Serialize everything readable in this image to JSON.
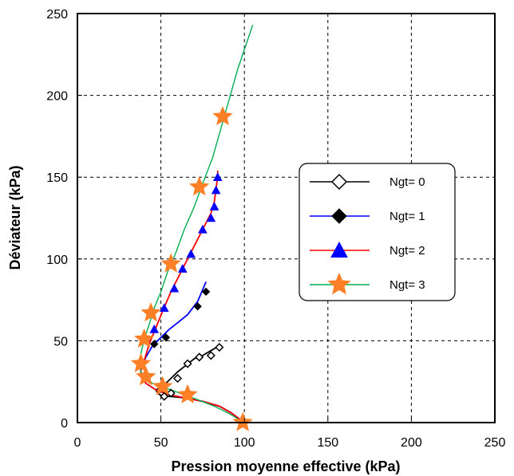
{
  "chart_data": {
    "type": "line",
    "title": "",
    "xlabel": "Pression moyenne effective (kPa)",
    "ylabel": "Déviateur (kPa)",
    "xlim": [
      0,
      250
    ],
    "ylim": [
      0,
      250
    ],
    "x_ticks": [
      "0",
      "50",
      "100",
      "150",
      "200",
      "250"
    ],
    "y_ticks": [
      "0",
      "50",
      "100",
      "150",
      "200",
      "250"
    ],
    "grid": true,
    "grid_style": "dashed",
    "legend_position": "center-right",
    "series": [
      {
        "name": "Ngt= 0",
        "color": "#000000",
        "marker": "open-diamond",
        "points": [
          [
            99,
            1
          ],
          [
            96,
            3
          ],
          [
            92,
            6
          ],
          [
            85,
            10
          ],
          [
            75,
            13
          ],
          [
            65,
            15
          ],
          [
            56,
            16
          ],
          [
            51,
            16
          ],
          [
            48,
            18
          ],
          [
            47,
            20
          ],
          [
            51,
            22
          ],
          [
            55,
            26
          ],
          [
            60,
            31
          ],
          [
            65,
            35
          ],
          [
            70,
            39
          ],
          [
            75,
            41
          ],
          [
            80,
            44
          ],
          [
            85,
            47
          ]
        ],
        "marker_points": [
          [
            52,
            16
          ],
          [
            56,
            18
          ],
          [
            60,
            27
          ],
          [
            66,
            36
          ],
          [
            73,
            40
          ],
          [
            80,
            41
          ],
          [
            85,
            46
          ]
        ]
      },
      {
        "name": "Ngt= 1",
        "color": "#0000ff",
        "marker": "filled-diamond",
        "points": [
          [
            99,
            1
          ],
          [
            96,
            3
          ],
          [
            92,
            6
          ],
          [
            85,
            10
          ],
          [
            75,
            13
          ],
          [
            65,
            15
          ],
          [
            55,
            17
          ],
          [
            47,
            20
          ],
          [
            41,
            24
          ],
          [
            38,
            28
          ],
          [
            38,
            33
          ],
          [
            41,
            40
          ],
          [
            45,
            47
          ],
          [
            50,
            52
          ],
          [
            55,
            57
          ],
          [
            60,
            61
          ],
          [
            66,
            66
          ],
          [
            72,
            74
          ],
          [
            77,
            86
          ]
        ],
        "marker_points": [
          [
            46,
            48
          ],
          [
            53,
            52
          ],
          [
            72,
            71
          ],
          [
            77,
            80
          ]
        ]
      },
      {
        "name": "Ngt= 2",
        "color": "#ff0000",
        "marker": "filled-triangle",
        "points": [
          [
            99,
            1
          ],
          [
            96,
            3
          ],
          [
            92,
            6
          ],
          [
            85,
            10
          ],
          [
            75,
            13
          ],
          [
            65,
            15
          ],
          [
            55,
            17
          ],
          [
            47,
            20
          ],
          [
            41,
            24
          ],
          [
            38,
            28
          ],
          [
            38,
            32
          ],
          [
            40,
            38
          ],
          [
            43,
            48
          ],
          [
            47,
            58
          ],
          [
            51,
            68
          ],
          [
            56,
            80
          ],
          [
            61,
            90
          ],
          [
            66,
            100
          ],
          [
            71,
            110
          ],
          [
            76,
            120
          ],
          [
            80,
            128
          ],
          [
            82,
            135
          ],
          [
            83,
            143
          ],
          [
            84,
            150
          ],
          [
            84,
            154
          ]
        ],
        "marker_points": [
          [
            46,
            57
          ],
          [
            52,
            70
          ],
          [
            58,
            82
          ],
          [
            63,
            94
          ],
          [
            68,
            103
          ],
          [
            75,
            118
          ],
          [
            80,
            125
          ],
          [
            82,
            132
          ],
          [
            83,
            142
          ],
          [
            84,
            150
          ]
        ]
      },
      {
        "name": "Ngt= 3",
        "color": "#00b050",
        "marker": "star",
        "marker_color": "#ff7f27",
        "points": [
          [
            99,
            0
          ],
          [
            95,
            3
          ],
          [
            90,
            6
          ],
          [
            82,
            10
          ],
          [
            72,
            14
          ],
          [
            64,
            17
          ],
          [
            56,
            20
          ],
          [
            50,
            22
          ],
          [
            45,
            24
          ],
          [
            41,
            27
          ],
          [
            38,
            31
          ],
          [
            37,
            36
          ],
          [
            38,
            42
          ],
          [
            40,
            51
          ],
          [
            43,
            60
          ],
          [
            46,
            70
          ],
          [
            50,
            80
          ],
          [
            54,
            92
          ],
          [
            59,
            104
          ],
          [
            64,
            118
          ],
          [
            70,
            132
          ],
          [
            75,
            146
          ],
          [
            81,
            162
          ],
          [
            86,
            180
          ],
          [
            91,
            198
          ],
          [
            96,
            216
          ],
          [
            101,
            231
          ],
          [
            105,
            243
          ]
        ],
        "marker_points": [
          [
            99,
            0
          ],
          [
            66,
            17
          ],
          [
            51,
            22
          ],
          [
            41,
            28
          ],
          [
            38,
            36
          ],
          [
            40,
            51
          ],
          [
            44,
            67
          ],
          [
            56,
            97
          ],
          [
            73,
            144
          ],
          [
            87,
            187
          ]
        ]
      }
    ]
  }
}
